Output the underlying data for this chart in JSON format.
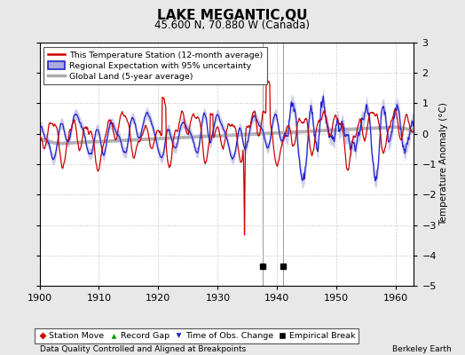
{
  "title": "LAKE MEGANTIC,QU",
  "subtitle": "45.600 N, 70.880 W (Canada)",
  "ylabel": "Temperature Anomaly (°C)",
  "xlabel_left": "Data Quality Controlled and Aligned at Breakpoints",
  "xlabel_right": "Berkeley Earth",
  "xmin": 1900,
  "xmax": 1963,
  "ymin": -5,
  "ymax": 3,
  "yticks": [
    -5,
    -4,
    -3,
    -2,
    -1,
    0,
    1,
    2,
    3
  ],
  "xticks": [
    1900,
    1910,
    1920,
    1930,
    1940,
    1950,
    1960
  ],
  "bg_color": "#e8e8e8",
  "plot_bg_color": "#ffffff",
  "red_color": "#cc0000",
  "blue_color": "#2222cc",
  "blue_fill_color": "#aaaadd",
  "gray_color": "#aaaaaa",
  "empirical_breaks": [
    1937.5,
    1941.0
  ],
  "seed": 7,
  "vline1": 1941.5
}
